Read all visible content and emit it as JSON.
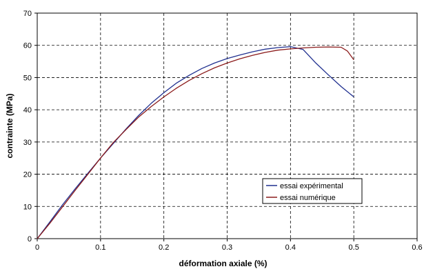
{
  "chart_data": {
    "type": "line",
    "title": "",
    "xlabel": "déformation axiale (%)",
    "ylabel": "contrainte (MPa)",
    "xlim": [
      0,
      0.6
    ],
    "ylim": [
      0,
      70
    ],
    "x_ticks": [
      "0",
      "0.1",
      "0.2",
      "0.3",
      "0.4",
      "0.5",
      "0.6"
    ],
    "y_ticks": [
      "0",
      "10",
      "20",
      "30",
      "40",
      "50",
      "60",
      "70"
    ],
    "grid": "dashed",
    "legend_position": "bottom-right",
    "series": [
      {
        "name": "essai expérimental",
        "color": "#1f2f8f",
        "x": [
          0,
          0.02,
          0.04,
          0.06,
          0.08,
          0.1,
          0.12,
          0.14,
          0.16,
          0.18,
          0.2,
          0.22,
          0.24,
          0.26,
          0.28,
          0.3,
          0.32,
          0.34,
          0.36,
          0.38,
          0.4,
          0.42,
          0.44,
          0.46,
          0.48,
          0.5
        ],
        "y": [
          0,
          5.2,
          10.5,
          15.5,
          20.3,
          25.0,
          29.5,
          34.0,
          38.2,
          42.0,
          45.3,
          48.3,
          50.7,
          52.8,
          54.5,
          55.9,
          57.0,
          58.0,
          58.8,
          59.3,
          59.6,
          58.7,
          54.5,
          50.8,
          47.2,
          44.0
        ]
      },
      {
        "name": "essai numérique",
        "color": "#8b1a1a",
        "x": [
          0,
          0.02,
          0.04,
          0.06,
          0.08,
          0.1,
          0.12,
          0.14,
          0.16,
          0.18,
          0.2,
          0.22,
          0.24,
          0.26,
          0.28,
          0.3,
          0.32,
          0.34,
          0.36,
          0.38,
          0.4,
          0.42,
          0.44,
          0.46,
          0.48,
          0.49,
          0.5
        ],
        "y": [
          0,
          4.8,
          9.9,
          15.0,
          20.0,
          25.0,
          29.8,
          33.8,
          37.7,
          41.0,
          44.0,
          46.7,
          49.1,
          51.2,
          53.0,
          54.5,
          55.8,
          56.9,
          57.8,
          58.5,
          58.9,
          59.2,
          59.4,
          59.5,
          59.4,
          58.2,
          55.5
        ]
      }
    ]
  }
}
